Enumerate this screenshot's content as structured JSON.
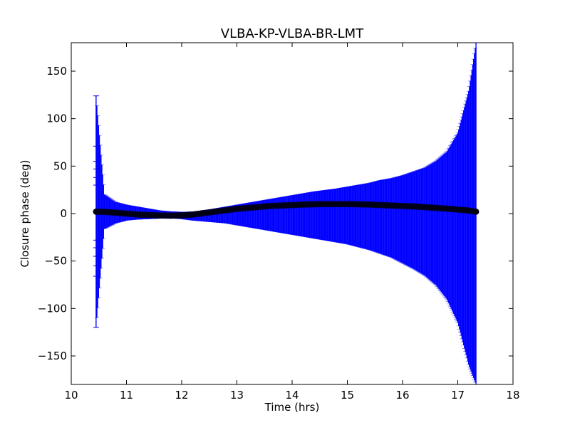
{
  "chart_data": {
    "type": "scatter",
    "title": "VLBA-KP-VLBA-BR-LMT",
    "xlabel": "Time (hrs)",
    "ylabel": "Closure phase (deg)",
    "xlim": [
      10,
      18
    ],
    "ylim": [
      -180,
      180
    ],
    "xticks": [
      10,
      11,
      12,
      13,
      14,
      15,
      16,
      17,
      18
    ],
    "xtick_labels": [
      "10",
      "11",
      "12",
      "13",
      "14",
      "15",
      "16",
      "17",
      "18"
    ],
    "yticks": [
      150,
      100,
      50,
      0,
      -50,
      -100,
      -150
    ],
    "ytick_labels": [
      "150",
      "100",
      "50",
      "0",
      "−50",
      "−100",
      "−150"
    ],
    "grid": false,
    "legend": "none",
    "x_range": [
      10.45,
      17.33
    ],
    "error_color": "#0000ff",
    "marker_color": "#000000",
    "marker_edge_color": "#000033",
    "series": [
      {
        "x": [
          10.45,
          10.6,
          10.8,
          11.0,
          11.2,
          11.4,
          11.6,
          11.8,
          12.0,
          12.2,
          12.4,
          12.6,
          12.8,
          13.0,
          13.2,
          13.4,
          13.6,
          13.8,
          14.0,
          14.2,
          14.4,
          14.6,
          14.8,
          15.0,
          15.2,
          15.4,
          15.6,
          15.8,
          16.0,
          16.2,
          16.4,
          16.6,
          16.8,
          17.0,
          17.2,
          17.33
        ],
        "y": [
          2,
          1.8,
          1,
          0,
          -1,
          -1.5,
          -2,
          -2.2,
          -1.8,
          -1,
          0.5,
          2,
          3.5,
          5,
          6,
          7,
          8,
          8.5,
          9,
          9.5,
          9.8,
          10,
          10,
          10,
          9.8,
          9.5,
          9,
          8.5,
          8,
          7.5,
          6.8,
          6,
          5.2,
          4.3,
          3.2,
          2
        ],
        "upper": [
          124,
          20,
          12,
          9,
          7,
          5,
          3,
          2,
          1.5,
          1.8,
          3,
          5,
          7,
          9,
          11,
          13,
          15,
          17,
          19,
          21,
          23,
          24.5,
          26,
          28,
          30,
          32,
          35,
          37,
          40,
          44,
          48,
          55,
          65,
          85,
          130,
          180
        ],
        "lower": [
          -120,
          -16,
          -10,
          -7,
          -6,
          -5.5,
          -5,
          -4.8,
          -5.5,
          -7,
          -8,
          -9,
          -10,
          -12,
          -14,
          -16,
          -18,
          -20,
          -22,
          -24,
          -26,
          -28,
          -30,
          -32,
          -35,
          -38,
          -42,
          -46,
          -52,
          -58,
          -65,
          -75,
          -90,
          -115,
          -160,
          -180
        ]
      }
    ],
    "first_point_caps": [
      124,
      71,
      55,
      47,
      38,
      30,
      -28,
      -36,
      -45,
      -55,
      -66,
      -120
    ]
  }
}
